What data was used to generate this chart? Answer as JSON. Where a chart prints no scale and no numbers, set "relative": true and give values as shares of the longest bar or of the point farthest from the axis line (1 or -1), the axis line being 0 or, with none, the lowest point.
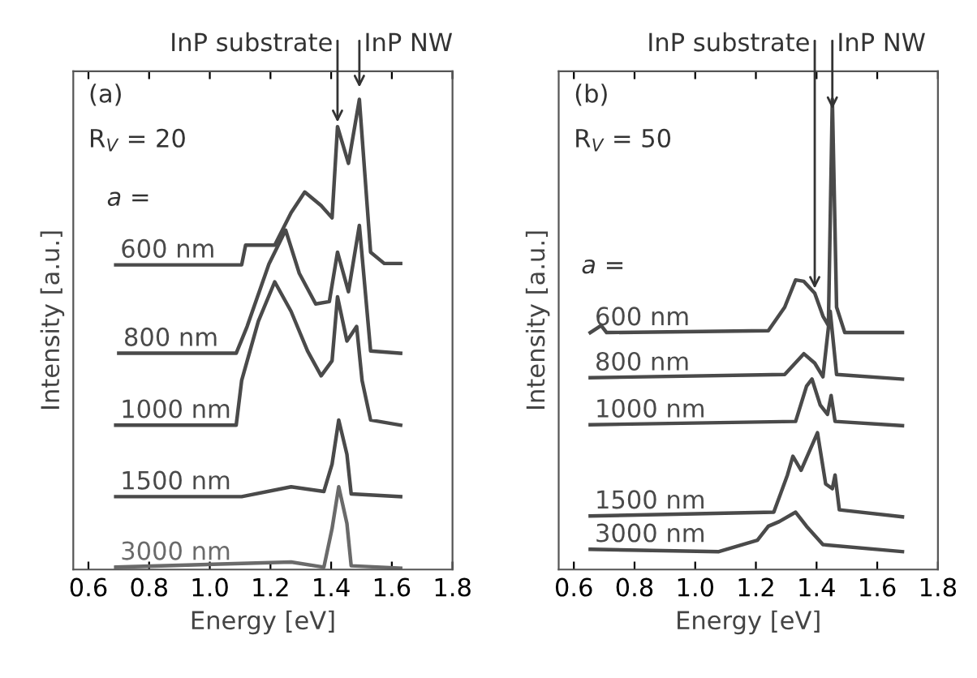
{
  "chart_data": [
    {
      "type": "line",
      "relative": true,
      "xlabel": "Energy [eV]",
      "ylabel": "Intensity [a.u.]",
      "xlim": [
        0.55,
        1.8
      ],
      "xticks": [
        0.6,
        0.8,
        {
          "value": 1.0,
          "label": "1.0"
        },
        1.2,
        1.4,
        1.6,
        1.8
      ],
      "tick_labels": "x",
      "annotations": [
        "(a)",
        "R$_{V}$ = 20",
        "a =",
        {
          "text": "InP substrate",
          "x": 1.421,
          "y": 0.942
        },
        {
          "text": "InP NW",
          "x": 1.493,
          "y": 1.016
        }
      ],
      "series": [
        {
          "name": "600 nm",
          "color": "#4a4a4a",
          "x": [
            0.69,
            1.105,
            1.118,
            1.214,
            1.268,
            1.313,
            1.367,
            1.403,
            1.421,
            1.457,
            1.493,
            1.53,
            1.575,
            1.629
          ],
          "values": [
            0.648,
            0.648,
            0.69,
            0.69,
            0.759,
            0.803,
            0.774,
            0.748,
            0.942,
            0.864,
            1.0,
            0.675,
            0.651,
            0.651
          ]
        },
        {
          "name": "800 nm",
          "color": "#4a4a4a",
          "x": [
            0.7,
            1.087,
            1.123,
            1.195,
            1.25,
            1.295,
            1.349,
            1.394,
            1.421,
            1.457,
            1.493,
            1.53,
            1.629
          ],
          "values": [
            0.46,
            0.46,
            0.517,
            0.65,
            0.722,
            0.63,
            0.565,
            0.57,
            0.675,
            0.591,
            0.732,
            0.465,
            0.46
          ]
        },
        {
          "name": "1000 nm",
          "color": "#4a4a4a",
          "x": [
            0.69,
            1.087,
            1.105,
            1.16,
            1.214,
            1.268,
            1.322,
            1.367,
            1.403,
            1.421,
            1.452,
            1.484,
            1.502,
            1.53,
            1.629
          ],
          "values": [
            0.307,
            0.307,
            0.402,
            0.528,
            0.612,
            0.549,
            0.465,
            0.412,
            0.444,
            0.58,
            0.486,
            0.517,
            0.402,
            0.318,
            0.307
          ]
        },
        {
          "name": "1500 nm",
          "color": "#4a4a4a",
          "x": [
            0.69,
            1.105,
            1.268,
            1.376,
            1.403,
            1.425,
            1.452,
            1.466,
            1.629
          ],
          "values": [
            0.155,
            0.155,
            0.176,
            0.166,
            0.224,
            0.318,
            0.245,
            0.161,
            0.155
          ]
        },
        {
          "name": "3000 nm",
          "color": "#6a6a6a",
          "x": [
            0.69,
            1.268,
            1.376,
            1.403,
            1.425,
            1.452,
            1.466,
            1.629
          ],
          "values": [
            0.005,
            0.016,
            0.005,
            0.087,
            0.176,
            0.098,
            0.008,
            0.003
          ]
        }
      ]
    },
    {
      "type": "line",
      "relative": true,
      "xlabel": "Energy [eV]",
      "ylabel": "Intensity [a.u.]",
      "xlim": [
        0.55,
        1.8
      ],
      "xticks": [
        0.6,
        0.8,
        {
          "value": 1.0,
          "label": "1.0"
        },
        1.2,
        1.4,
        1.6,
        1.8
      ],
      "tick_labels": "x",
      "annotations": [
        "(b)",
        "R$_{V}$ = 50",
        "a =",
        {
          "text": "InP substrate",
          "x": 1.394,
          "y": 0.588
        },
        {
          "text": "InP NW",
          "x": 1.452,
          "y": 0.97
        }
      ],
      "series": [
        {
          "name": "600 nm",
          "color": "#4a4a4a",
          "x": [
            0.654,
            0.69,
            0.708,
            1.241,
            1.295,
            1.331,
            1.358,
            1.394,
            1.421,
            1.439,
            1.452,
            1.466,
            1.493,
            1.683
          ],
          "values": [
            0.504,
            0.519,
            0.504,
            0.508,
            0.558,
            0.616,
            0.613,
            0.588,
            0.539,
            0.519,
            1.0,
            0.558,
            0.504,
            0.504
          ]
        },
        {
          "name": "800 nm",
          "color": "#4a4a4a",
          "x": [
            0.654,
            1.295,
            1.358,
            1.394,
            1.421,
            1.445,
            1.466,
            1.683
          ],
          "values": [
            0.408,
            0.415,
            0.459,
            0.439,
            0.41,
            0.549,
            0.415,
            0.405
          ]
        },
        {
          "name": "1000 nm",
          "color": "#4a4a4a",
          "x": [
            0.654,
            1.331,
            1.367,
            1.385,
            1.412,
            1.436,
            1.448,
            1.461,
            1.683
          ],
          "values": [
            0.308,
            0.315,
            0.39,
            0.405,
            0.35,
            0.33,
            0.37,
            0.315,
            0.306
          ]
        },
        {
          "name": "1500 nm",
          "color": "#4a4a4a",
          "x": [
            0.654,
            1.259,
            1.304,
            1.322,
            1.349,
            1.403,
            1.43,
            1.452,
            1.461,
            1.475,
            1.683
          ],
          "values": [
            0.114,
            0.122,
            0.201,
            0.241,
            0.211,
            0.291,
            0.182,
            0.172,
            0.201,
            0.127,
            0.112
          ]
        },
        {
          "name": "3000 nm",
          "color": "#4a4a4a",
          "x": [
            0.654,
            1.078,
            1.205,
            1.241,
            1.277,
            1.331,
            1.367,
            1.421,
            1.683
          ],
          "values": [
            0.043,
            0.038,
            0.0625,
            0.092,
            0.102,
            0.122,
            0.092,
            0.053,
            0.038
          ]
        }
      ]
    }
  ]
}
